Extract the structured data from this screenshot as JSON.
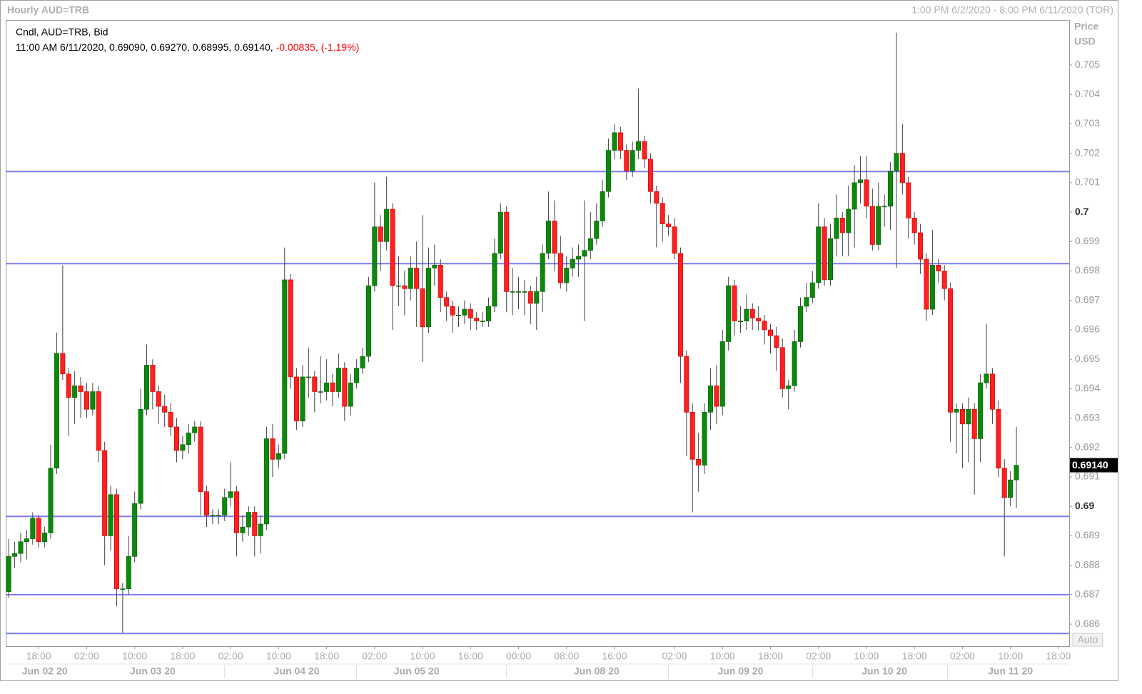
{
  "chart_data": {
    "type": "candlestick",
    "title": "Hourly AUD=TRB",
    "subtitle": "1:00 PM 6/2/2020 - 8:00 PM 6/11/2020 (TOR)",
    "info_label": "Cndl, AUD=TRB, Bid",
    "info_values": "11:00 AM 6/11/2020, 0.69090, 0.69270, 0.68995, 0.69140,",
    "info_change": "-0.00835, (-1.19%)",
    "ylabel": "Price",
    "yunit": "USD",
    "scale_mode": "Auto",
    "up_color": "#0a8a0a",
    "down_color": "#ff2020",
    "hline_color": "#7b7bf0",
    "xlim": [
      -0.5,
      176.8
    ],
    "ylim": [
      0.68525,
      0.70653
    ],
    "yticks": [
      0.705,
      0.704,
      0.703,
      0.702,
      0.701,
      0.7,
      0.699,
      0.698,
      0.697,
      0.696,
      0.695,
      0.694,
      0.693,
      0.692,
      0.691,
      0.69,
      0.689,
      0.688,
      0.687,
      0.686
    ],
    "xticks": [
      {
        "value": 5,
        "label": "18:00"
      },
      {
        "value": 13,
        "label": "02:00"
      },
      {
        "value": 21,
        "label": "10:00"
      },
      {
        "value": 29,
        "label": "18:00"
      },
      {
        "value": 37,
        "label": "02:00"
      },
      {
        "value": 45,
        "label": "10:00"
      },
      {
        "value": 53,
        "label": "18:00"
      },
      {
        "value": 61,
        "label": "02:00"
      },
      {
        "value": 69,
        "label": "10:00"
      },
      {
        "value": 77,
        "label": "16:00"
      },
      {
        "value": 85,
        "label": "00:00"
      },
      {
        "value": 93,
        "label": "08:00"
      },
      {
        "value": 101,
        "label": "16:00"
      },
      {
        "value": 111,
        "label": "02:00"
      },
      {
        "value": 119,
        "label": "10:00"
      },
      {
        "value": 127,
        "label": "18:00"
      },
      {
        "value": 135,
        "label": "02:00"
      },
      {
        "value": 143,
        "label": "10:00"
      },
      {
        "value": 151,
        "label": "18:00"
      },
      {
        "value": 159,
        "label": "02:00"
      },
      {
        "value": 167,
        "label": "10:00"
      },
      {
        "value": 175,
        "label": "18:00"
      }
    ],
    "date_ticks": [
      {
        "value": 6,
        "label": "Jun 02 20"
      },
      {
        "value": 24,
        "label": "Jun 03 20"
      },
      {
        "value": 48,
        "label": "Jun 04 20"
      },
      {
        "value": 68,
        "label": "Jun 05 20"
      },
      {
        "value": 98,
        "label": "Jun 08 20"
      },
      {
        "value": 122,
        "label": "Jun 09 20"
      },
      {
        "value": 146,
        "label": "Jun 10 20"
      },
      {
        "value": 167,
        "label": "Jun 11 20"
      }
    ],
    "hlines": [
      0.70138,
      0.69825,
      0.68966,
      0.687,
      0.68568
    ],
    "last_price": {
      "value": 0.6914,
      "label": "0.69140"
    },
    "x": [
      0,
      1,
      2,
      3,
      4,
      5,
      6,
      7,
      8,
      9,
      10,
      11,
      12,
      13,
      14,
      15,
      16,
      17,
      18,
      19,
      20,
      21,
      22,
      23,
      24,
      25,
      26,
      27,
      28,
      29,
      30,
      31,
      32,
      33,
      34,
      35,
      36,
      37,
      38,
      39,
      40,
      41,
      42,
      43,
      44,
      45,
      46,
      47,
      48,
      49,
      50,
      51,
      52,
      53,
      54,
      55,
      56,
      57,
      58,
      59,
      60,
      61,
      62,
      63,
      64,
      65,
      66,
      67,
      68,
      69,
      70,
      71,
      72,
      73,
      74,
      75,
      76,
      77,
      78,
      79,
      80,
      81,
      82,
      83,
      84,
      85,
      86,
      87,
      88,
      89,
      90,
      91,
      92,
      93,
      94,
      95,
      96,
      97,
      98,
      99,
      100,
      101,
      102,
      103,
      104,
      105,
      106,
      107,
      108,
      109,
      110,
      111,
      112,
      113,
      114,
      115,
      116,
      117,
      118,
      119,
      120,
      121,
      122,
      123,
      124,
      125,
      126,
      127,
      128,
      129,
      130,
      131,
      132,
      133,
      134,
      135,
      136,
      137,
      138,
      139,
      140,
      141,
      142,
      143,
      144,
      145,
      146,
      147,
      148,
      149,
      150,
      151,
      152,
      153,
      154,
      155,
      156,
      157,
      158,
      159,
      160,
      161,
      162,
      163,
      164,
      165,
      166,
      167,
      168
    ],
    "open": [
      0.6871,
      0.6883,
      0.6884,
      0.6888,
      0.6889,
      0.6896,
      0.6888,
      0.6891,
      0.6913,
      0.6952,
      0.6945,
      0.6937,
      0.6941,
      0.6939,
      0.6933,
      0.6939,
      0.6919,
      0.689,
      0.6904,
      0.6872,
      0.6872,
      0.6883,
      0.6901,
      0.6933,
      0.6948,
      0.6939,
      0.6934,
      0.6932,
      0.6927,
      0.6919,
      0.6921,
      0.6925,
      0.6927,
      0.6905,
      0.6897,
      0.6897,
      0.6897,
      0.6903,
      0.6905,
      0.6891,
      0.6893,
      0.6898,
      0.689,
      0.6894,
      0.6923,
      0.6916,
      0.6918,
      0.6977,
      0.6944,
      0.6929,
      0.6944,
      0.6944,
      0.6939,
      0.6939,
      0.6942,
      0.6939,
      0.6947,
      0.6934,
      0.6942,
      0.6947,
      0.6951,
      0.6975,
      0.6995,
      0.699,
      0.7001,
      0.6975,
      0.6975,
      0.6974,
      0.6981,
      0.6974,
      0.6961,
      0.6981,
      0.6982,
      0.6971,
      0.6968,
      0.6965,
      0.6965,
      0.6967,
      0.6964,
      0.6963,
      0.6963,
      0.6968,
      0.6986,
      0.7,
      0.6973,
      0.6973,
      0.6973,
      0.6973,
      0.6969,
      0.6973,
      0.6986,
      0.6997,
      0.6986,
      0.6976,
      0.6981,
      0.6984,
      0.6985,
      0.6987,
      0.6991,
      0.6997,
      0.7007,
      0.7021,
      0.7027,
      0.7021,
      0.7014,
      0.7021,
      0.7024,
      0.7018,
      0.7007,
      0.7003,
      0.6996,
      0.6995,
      0.6986,
      0.6951,
      0.6932,
      0.6916,
      0.6914,
      0.6932,
      0.6941,
      0.6934,
      0.6956,
      0.6975,
      0.6963,
      0.6963,
      0.6967,
      0.6964,
      0.6963,
      0.696,
      0.6958,
      0.6954,
      0.694,
      0.6941,
      0.6956,
      0.6968,
      0.6971,
      0.6976,
      0.6995,
      0.6977,
      0.6991,
      0.6998,
      0.6993,
      0.7001,
      0.701,
      0.7011,
      0.7002,
      0.6989,
      0.7002,
      0.7002,
      0.7014,
      0.702,
      0.701,
      0.6998,
      0.6993,
      0.6984,
      0.6967,
      0.6982,
      0.698,
      0.6974,
      0.6932,
      0.6933,
      0.6928,
      0.6933,
      0.6923,
      0.6942,
      0.6945,
      0.6933,
      0.6913,
      0.6903,
      0.6909
    ],
    "high": [
      0.6889,
      0.6888,
      0.6891,
      0.6892,
      0.6898,
      0.6897,
      0.6893,
      0.6921,
      0.6959,
      0.6982,
      0.6947,
      0.6946,
      0.6944,
      0.6942,
      0.6942,
      0.6941,
      0.6922,
      0.6907,
      0.6906,
      0.6874,
      0.689,
      0.6905,
      0.694,
      0.6955,
      0.695,
      0.6941,
      0.6938,
      0.6935,
      0.693,
      0.6924,
      0.6928,
      0.6929,
      0.6929,
      0.6907,
      0.6899,
      0.6899,
      0.6906,
      0.6915,
      0.6907,
      0.6897,
      0.69,
      0.69,
      0.6897,
      0.6927,
      0.6928,
      0.6921,
      0.6988,
      0.6979,
      0.6947,
      0.6948,
      0.6954,
      0.6946,
      0.6951,
      0.695,
      0.6945,
      0.6952,
      0.6949,
      0.6945,
      0.695,
      0.6954,
      0.6978,
      0.701,
      0.6999,
      0.7012,
      0.7003,
      0.6985,
      0.698,
      0.6985,
      0.699,
      0.6999,
      0.6988,
      0.6989,
      0.6984,
      0.6973,
      0.697,
      0.6968,
      0.697,
      0.6969,
      0.6966,
      0.6966,
      0.6971,
      0.6991,
      0.7003,
      0.7002,
      0.6981,
      0.6978,
      0.6977,
      0.6975,
      0.6978,
      0.6989,
      0.7007,
      0.7004,
      0.6992,
      0.6985,
      0.6988,
      0.6989,
      0.7004,
      0.7,
      0.7003,
      0.7011,
      0.7025,
      0.703,
      0.7029,
      0.7023,
      0.7024,
      0.7042,
      0.7026,
      0.702,
      0.7009,
      0.7005,
      0.6999,
      0.6998,
      0.6988,
      0.6953,
      0.6935,
      0.6925,
      0.6935,
      0.6947,
      0.6948,
      0.696,
      0.6978,
      0.6977,
      0.6968,
      0.6972,
      0.6969,
      0.6968,
      0.6965,
      0.6962,
      0.6961,
      0.6957,
      0.6943,
      0.696,
      0.6971,
      0.6976,
      0.698,
      0.7003,
      0.6998,
      0.6996,
      0.7006,
      0.7,
      0.7009,
      0.7016,
      0.7019,
      0.7019,
      0.7008,
      0.701,
      0.7006,
      0.7017,
      0.7061,
      0.703,
      0.7012,
      0.7,
      0.6996,
      0.6986,
      0.6994,
      0.6984,
      0.6982,
      0.6976,
      0.6935,
      0.6935,
      0.6937,
      0.6935,
      0.6945,
      0.6962,
      0.6947,
      0.6936,
      0.6916,
      0.6912,
      0.6927
    ],
    "low": [
      0.6869,
      0.6879,
      0.6881,
      0.6882,
      0.6887,
      0.6886,
      0.6886,
      0.6889,
      0.6911,
      0.6943,
      0.6924,
      0.6928,
      0.693,
      0.693,
      0.6931,
      0.6915,
      0.688,
      0.6885,
      0.6866,
      0.6857,
      0.687,
      0.6881,
      0.6899,
      0.6931,
      0.6933,
      0.6928,
      0.6927,
      0.6924,
      0.6915,
      0.6916,
      0.6918,
      0.6922,
      0.6897,
      0.6893,
      0.6894,
      0.6894,
      0.6895,
      0.69,
      0.6883,
      0.6888,
      0.689,
      0.6883,
      0.6884,
      0.6892,
      0.691,
      0.6913,
      0.6916,
      0.694,
      0.6926,
      0.6927,
      0.6937,
      0.6932,
      0.6935,
      0.6936,
      0.6934,
      0.6937,
      0.6929,
      0.6931,
      0.694,
      0.6945,
      0.6949,
      0.6973,
      0.698,
      0.6987,
      0.696,
      0.6968,
      0.6965,
      0.697,
      0.6961,
      0.6949,
      0.6959,
      0.6975,
      0.6966,
      0.6963,
      0.6959,
      0.6961,
      0.6962,
      0.696,
      0.696,
      0.6961,
      0.6961,
      0.6966,
      0.6984,
      0.6966,
      0.6965,
      0.6967,
      0.6965,
      0.6962,
      0.696,
      0.6966,
      0.6984,
      0.698,
      0.6974,
      0.6973,
      0.6978,
      0.6978,
      0.6963,
      0.6984,
      0.6989,
      0.6995,
      0.7005,
      0.7018,
      0.7018,
      0.7011,
      0.7012,
      0.7018,
      0.7015,
      0.7003,
      0.6988,
      0.699,
      0.6992,
      0.6984,
      0.6942,
      0.6917,
      0.6898,
      0.6905,
      0.6911,
      0.6926,
      0.6928,
      0.6931,
      0.6953,
      0.6958,
      0.6959,
      0.696,
      0.696,
      0.696,
      0.6955,
      0.6952,
      0.6946,
      0.6937,
      0.6933,
      0.6939,
      0.6954,
      0.6966,
      0.6969,
      0.6974,
      0.6975,
      0.6975,
      0.6985,
      0.6985,
      0.6985,
      0.6988,
      0.7003,
      0.6998,
      0.6987,
      0.6987,
      0.6995,
      0.6994,
      0.6981,
      0.7006,
      0.6991,
      0.6989,
      0.6979,
      0.6963,
      0.6965,
      0.6976,
      0.697,
      0.6922,
      0.6918,
      0.6913,
      0.6915,
      0.6904,
      0.6915,
      0.694,
      0.6928,
      0.691,
      0.6883,
      0.69,
      0.68995
    ],
    "close": [
      0.6883,
      0.6884,
      0.6888,
      0.6889,
      0.6896,
      0.6888,
      0.6891,
      0.6913,
      0.6952,
      0.6945,
      0.6937,
      0.6941,
      0.6939,
      0.6933,
      0.6939,
      0.6919,
      0.689,
      0.6904,
      0.6872,
      0.6872,
      0.6883,
      0.6901,
      0.6933,
      0.6948,
      0.6939,
      0.6934,
      0.6932,
      0.6927,
      0.6919,
      0.6921,
      0.6925,
      0.6927,
      0.6905,
      0.6897,
      0.6897,
      0.6897,
      0.6903,
      0.6905,
      0.6891,
      0.6893,
      0.6898,
      0.689,
      0.6894,
      0.6923,
      0.6916,
      0.6918,
      0.6977,
      0.6944,
      0.6929,
      0.6944,
      0.6944,
      0.6939,
      0.6939,
      0.6942,
      0.6939,
      0.6947,
      0.6934,
      0.6942,
      0.6947,
      0.6951,
      0.6975,
      0.6995,
      0.699,
      0.7001,
      0.6975,
      0.6975,
      0.6974,
      0.6981,
      0.6974,
      0.6961,
      0.6981,
      0.6982,
      0.6971,
      0.6968,
      0.6965,
      0.6965,
      0.6967,
      0.6964,
      0.6963,
      0.6963,
      0.6968,
      0.6986,
      0.7,
      0.6973,
      0.6973,
      0.6973,
      0.6973,
      0.6969,
      0.6973,
      0.6986,
      0.6997,
      0.6986,
      0.6976,
      0.6981,
      0.6984,
      0.6985,
      0.6987,
      0.6991,
      0.6997,
      0.7007,
      0.7021,
      0.7027,
      0.7021,
      0.7014,
      0.7021,
      0.7024,
      0.7018,
      0.7007,
      0.7003,
      0.6996,
      0.6995,
      0.6986,
      0.6951,
      0.6932,
      0.6916,
      0.6914,
      0.6932,
      0.6941,
      0.6934,
      0.6956,
      0.6975,
      0.6963,
      0.6963,
      0.6967,
      0.6964,
      0.6963,
      0.696,
      0.6958,
      0.6954,
      0.694,
      0.6941,
      0.6956,
      0.6968,
      0.6971,
      0.6976,
      0.6995,
      0.6977,
      0.6991,
      0.6998,
      0.6993,
      0.7001,
      0.701,
      0.7011,
      0.7002,
      0.6989,
      0.7002,
      0.7002,
      0.7014,
      0.702,
      0.701,
      0.6998,
      0.6993,
      0.6984,
      0.6967,
      0.6982,
      0.698,
      0.6974,
      0.6932,
      0.6933,
      0.6928,
      0.6933,
      0.6923,
      0.6942,
      0.6945,
      0.6933,
      0.6913,
      0.6903,
      0.6909,
      0.6914
    ]
  }
}
